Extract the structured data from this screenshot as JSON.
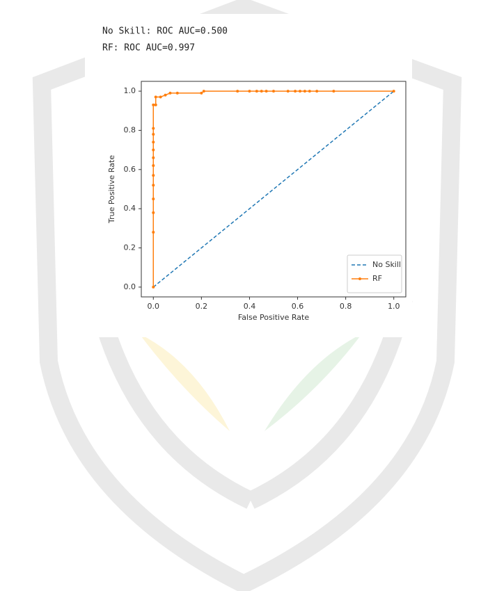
{
  "console_output": [
    "No Skill: ROC AUC=0.500",
    "RF: ROC AUC=0.997"
  ],
  "chart_data": {
    "type": "line",
    "x_label": "False Positive Rate",
    "y_label": "True Positive Rate",
    "xlim": [
      -0.05,
      1.05
    ],
    "ylim": [
      -0.05,
      1.05
    ],
    "xticks": [
      {
        "value": 0,
        "label": "0.0"
      },
      0.2,
      0.4,
      0.6,
      0.8,
      {
        "value": 1,
        "label": "1.0"
      }
    ],
    "yticks": [
      {
        "value": 0,
        "label": "0.0"
      },
      0.2,
      0.4,
      0.6,
      0.8,
      {
        "value": 1,
        "label": "1.0"
      }
    ],
    "legend": "lower right",
    "series": [
      {
        "name": "No Skill",
        "color": "#1f77b4",
        "dashed": true,
        "markers": false,
        "x": [
          0,
          1
        ],
        "values": [
          0,
          1
        ]
      },
      {
        "name": "RF",
        "color": "#ff7f0e",
        "dashed": false,
        "markers": true,
        "x": [
          0,
          0,
          0,
          0,
          0,
          0,
          0,
          0,
          0,
          0,
          0,
          0,
          0,
          0.01,
          0.01,
          0.03,
          0.05,
          0.07,
          0.1,
          0.2,
          0.21,
          0.35,
          0.4,
          0.43,
          0.45,
          0.47,
          0.5,
          0.56,
          0.59,
          0.61,
          0.63,
          0.65,
          0.68,
          0.75,
          1
        ],
        "values": [
          0,
          0.28,
          0.38,
          0.45,
          0.52,
          0.57,
          0.62,
          0.66,
          0.7,
          0.74,
          0.78,
          0.81,
          0.93,
          0.93,
          0.97,
          0.97,
          0.98,
          0.99,
          0.99,
          0.99,
          1,
          1,
          1,
          1,
          1,
          1,
          1,
          1,
          1,
          1,
          1,
          1,
          1,
          1,
          1
        ]
      }
    ]
  }
}
